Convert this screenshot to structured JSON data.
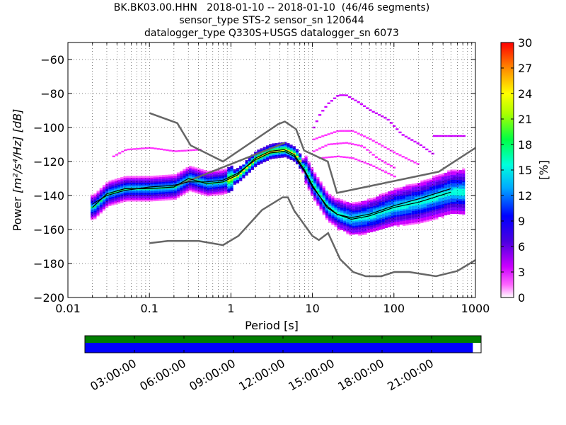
{
  "chart_data": [
    {
      "type": "heatmap",
      "title": [
        "BK.BK03.00.HHN   2018-01-10 -- 2018-01-10  (46/46 segments)",
        "sensor_type STS-2 sensor_sn 120644",
        "datalogger_type Q330S+USGS datalogger_sn 6073"
      ],
      "xlabel": "Period [s]",
      "ylabel_prefix": "Power",
      "ylabel_units": "[m²/s⁴/Hz] [dB]",
      "x_scale": "log",
      "xlim": [
        0.01,
        1000
      ],
      "ylim": [
        -200,
        -50
      ],
      "x_ticks": [
        0.01,
        0.1,
        1,
        10,
        100,
        1000
      ],
      "x_tick_labels": [
        "0.01",
        "0.1",
        "1",
        "10",
        "100",
        "1000"
      ],
      "y_ticks": [
        -200,
        -180,
        -160,
        -140,
        -120,
        -100,
        -80,
        -60
      ],
      "y_tick_labels": [
        "−200",
        "−180",
        "−160",
        "−140",
        "−120",
        "−100",
        "−80",
        "−60"
      ],
      "grid": true,
      "colorbar": {
        "label": "[%]",
        "range": [
          0,
          30
        ],
        "ticks": [
          0,
          3,
          6,
          9,
          12,
          15,
          18,
          21,
          24,
          27,
          30
        ],
        "tick_labels": [
          "0",
          "3",
          "6",
          "9",
          "12",
          "15",
          "18",
          "21",
          "24",
          "27",
          "30"
        ]
      },
      "nlnm": {
        "x": [
          0.1,
          0.17,
          0.4,
          0.8,
          1.24,
          2.4,
          4.3,
          5.0,
          6.0,
          10.0,
          12.0,
          15.6,
          21.9,
          31.6,
          45.0,
          70.0,
          101.0,
          154.0,
          328.0,
          600.0,
          1000.0
        ],
        "y": [
          -168.0,
          -166.7,
          -166.7,
          -169.2,
          -163.7,
          -148.6,
          -141.1,
          -141.1,
          -149.0,
          -163.8,
          -166.2,
          -162.1,
          -177.5,
          -185.0,
          -187.5,
          -187.5,
          -185.0,
          -185.0,
          -187.5,
          -184.4,
          -178.0
        ]
      },
      "nhnm": {
        "x": [
          0.1,
          0.22,
          0.32,
          0.8,
          3.8,
          4.6,
          6.3,
          7.9,
          15.4,
          20.0,
          354.8,
          1000.0
        ],
        "y": [
          -91.5,
          -97.4,
          -110.5,
          -120.0,
          -98.0,
          -96.5,
          -101.0,
          -113.5,
          -120.0,
          -138.5,
          -126.0,
          -112.0
        ],
        "mid_x": [
          0.22,
          4.6
        ],
        "mid_y": [
          -134.0,
          -109.0
        ]
      },
      "mode": {
        "x": [
          0.02,
          0.03,
          0.05,
          0.1,
          0.2,
          0.3,
          0.5,
          0.8,
          1.2,
          2,
          3,
          4.5,
          6,
          8,
          10,
          15,
          20,
          30,
          50,
          100,
          200,
          500
        ],
        "y": [
          -147,
          -139,
          -136,
          -136,
          -135,
          -130,
          -133,
          -132,
          -128,
          -118,
          -114,
          -113,
          -116,
          -125,
          -134,
          -147,
          -151,
          -154,
          -152,
          -147,
          -144,
          -138
        ]
      },
      "mean": {
        "x": [
          0.02,
          0.03,
          0.05,
          0.1,
          0.2,
          0.3,
          0.5,
          0.8,
          1.2,
          2,
          3,
          4.5,
          6,
          8,
          10,
          15,
          20,
          30,
          50,
          100,
          200,
          500
        ],
        "y": [
          -145,
          -140,
          -137,
          -135,
          -134,
          -132,
          -132,
          -131,
          -127,
          -119,
          -115,
          -114,
          -117,
          -126,
          -135,
          -146,
          -151,
          -153,
          -151,
          -146,
          -142,
          -136
        ]
      },
      "outliers": [
        {
          "x": [
            0.035,
            0.05,
            0.1,
            0.2,
            0.4
          ],
          "y": [
            -117,
            -113,
            -112,
            -114,
            -113
          ]
        },
        {
          "x": [
            10,
            12,
            15,
            20,
            25,
            35,
            50,
            80,
            120,
            200,
            300
          ],
          "y": [
            -100,
            -92,
            -86,
            -81,
            -81,
            -85,
            -90,
            -95,
            -104,
            -110,
            -116
          ]
        },
        {
          "x": [
            10,
            15,
            20,
            30,
            50,
            100,
            200
          ],
          "y": [
            -107,
            -104,
            -102,
            -102,
            -107,
            -115,
            -122
          ]
        },
        {
          "x": [
            10,
            15,
            25,
            40,
            60,
            100
          ],
          "y": [
            -114,
            -110,
            -109,
            -111,
            -118,
            -124
          ]
        },
        {
          "x": [
            12,
            20,
            30,
            50,
            100
          ],
          "y": [
            -118,
            -117,
            -118,
            -122,
            -129
          ]
        },
        {
          "x": [
            300,
            700
          ],
          "y": [
            -105,
            -105
          ]
        }
      ]
    },
    {
      "type": "timeline",
      "x_tick_labels": [
        "03:00:00",
        "06:00:00",
        "09:00:00",
        "12:00:00",
        "15:00:00",
        "18:00:00",
        "21:00:00"
      ],
      "x_ticks_hours": [
        3,
        6,
        9,
        12,
        15,
        18,
        21
      ],
      "range_hours": [
        0,
        24
      ],
      "top_bar": {
        "color": "#007f00",
        "coverage": [
          0,
          24
        ]
      },
      "bottom_bar": {
        "color": "#0000ff",
        "coverage": [
          0,
          23.5
        ]
      }
    }
  ]
}
